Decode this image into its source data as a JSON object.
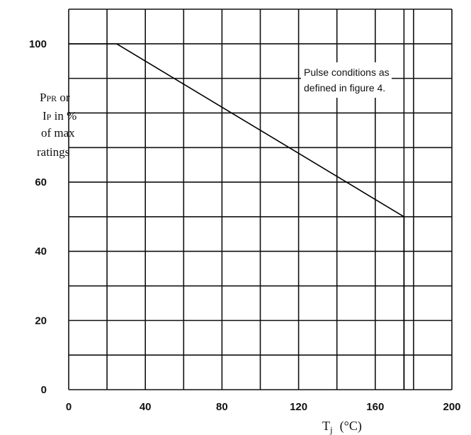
{
  "chart_data": {
    "type": "line",
    "xlim": [
      0,
      200
    ],
    "ylim": [
      0,
      110
    ],
    "x_ticks": [
      0,
      40,
      80,
      120,
      160,
      200
    ],
    "y_ticks": [
      0,
      20,
      40,
      60,
      100
    ],
    "x_grid": [
      0,
      20,
      40,
      60,
      80,
      100,
      120,
      140,
      160,
      175,
      180,
      200
    ],
    "y_grid": [
      0,
      10,
      20,
      30,
      40,
      50,
      60,
      70,
      80,
      90,
      100,
      110
    ],
    "grid": true,
    "series": [
      {
        "x": [
          0,
          25,
          175,
          175
        ],
        "y": [
          100,
          100,
          50,
          0
        ]
      }
    ],
    "ylabel_lines": [
      "P",
      "PR",
      " or",
      "I",
      "P",
      " in %",
      "of max",
      "ratings"
    ],
    "xlabel": "T",
    "xlabel_sub": "j",
    "xlabel_unit": "(°C)",
    "annotation_lines": [
      "Pulse conditions as",
      "defined in figure 4."
    ]
  }
}
